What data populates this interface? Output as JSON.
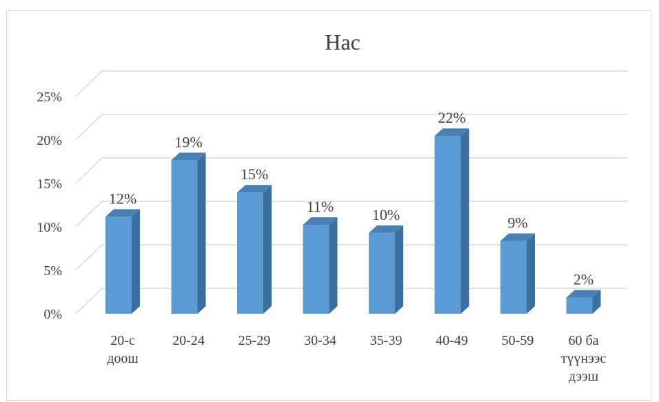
{
  "chart_data": {
    "type": "bar",
    "title": "Нас",
    "categories": [
      [
        "20-с",
        "доош"
      ],
      [
        "20-24"
      ],
      [
        "25-29"
      ],
      [
        "30-34"
      ],
      [
        "35-39"
      ],
      [
        "40-49"
      ],
      [
        "50-59"
      ],
      [
        "60 ба",
        "түүнээс",
        "дээш"
      ]
    ],
    "values": [
      12,
      19,
      15,
      11,
      10,
      22,
      9,
      2
    ],
    "data_labels": [
      "12%",
      "19%",
      "15%",
      "11%",
      "10%",
      "22%",
      "9%",
      "2%"
    ],
    "y_ticks": [
      "0%",
      "5%",
      "10%",
      "15%",
      "20%",
      "25%"
    ],
    "ylim": [
      0,
      25
    ],
    "grid": true,
    "style": "3d-column",
    "colors": {
      "bar_front": "#5b9bd5",
      "bar_side": "#3a6f9e",
      "bar_top": "#4a80b3",
      "grid": "#d9d9d9"
    }
  }
}
